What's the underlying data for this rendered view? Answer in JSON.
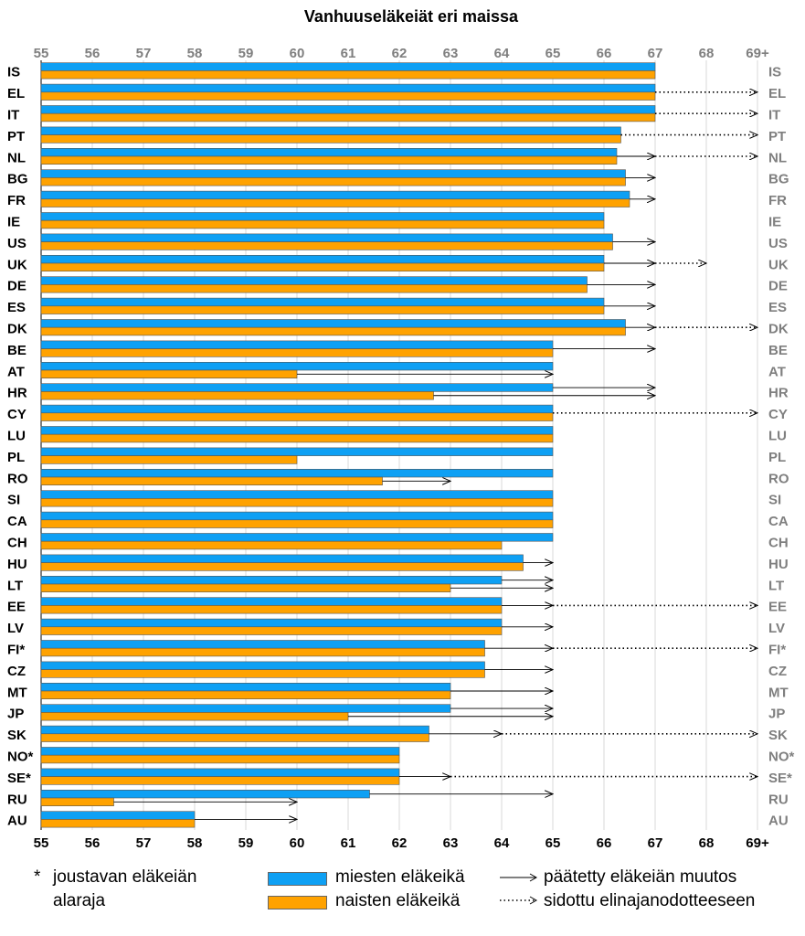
{
  "chart_data": {
    "type": "bar",
    "orientation": "horizontal",
    "title": "Vanhuuseläkeiät eri maissa",
    "x_axis": {
      "min": 55,
      "max": 69,
      "tick_labels": [
        "55",
        "56",
        "57",
        "58",
        "59",
        "60",
        "61",
        "62",
        "63",
        "64",
        "65",
        "66",
        "67",
        "68",
        "69+"
      ],
      "grid": true,
      "label_position": "top and bottom"
    },
    "categories": [
      "IS",
      "EL",
      "IT",
      "PT",
      "NL",
      "BG",
      "FR",
      "IE",
      "US",
      "UK",
      "DE",
      "ES",
      "DK",
      "BE",
      "AT",
      "HR",
      "CY",
      "LU",
      "PL",
      "RO",
      "SI",
      "CA",
      "CH",
      "HU",
      "LT",
      "EE",
      "LV",
      "FI*",
      "CZ",
      "MT",
      "JP",
      "SK",
      "NO*",
      "SE*",
      "RU",
      "AU"
    ],
    "series": [
      {
        "name": "miesten eläkeikä",
        "color": "#0ea0f4",
        "values": [
          67,
          67,
          67,
          66.33,
          66.25,
          66.42,
          66.5,
          66,
          66.17,
          66,
          65.67,
          66,
          66.42,
          65,
          65,
          65,
          65,
          65,
          65,
          65,
          65,
          65,
          65,
          64.42,
          64,
          64,
          64,
          63.67,
          63.67,
          63,
          63,
          62.58,
          62,
          62,
          61.42,
          58
        ]
      },
      {
        "name": "naisten eläkeikä",
        "color": "#ffa200",
        "values": [
          67,
          67,
          67,
          66.33,
          66.25,
          66.42,
          66.5,
          66,
          66.17,
          66,
          65.67,
          66,
          66.42,
          65,
          60,
          62.67,
          65,
          65,
          60,
          61.67,
          65,
          65,
          64,
          64.42,
          63,
          64,
          64,
          63.67,
          63.67,
          63,
          61,
          62.58,
          62,
          62,
          56.42,
          58
        ]
      }
    ],
    "decided_change": [
      {
        "category": "NL",
        "to": 67
      },
      {
        "category": "BG",
        "to": 67
      },
      {
        "category": "FR",
        "to": 67
      },
      {
        "category": "US",
        "to": 67
      },
      {
        "category": "UK",
        "to": 67
      },
      {
        "category": "DE",
        "to": 67
      },
      {
        "category": "ES",
        "to": 67
      },
      {
        "category": "DK",
        "to": 67
      },
      {
        "category": "BE",
        "to": 67
      },
      {
        "category": "AT",
        "series": "naisten eläkeikä",
        "to": 65
      },
      {
        "category": "HR",
        "series": "miesten eläkeikä",
        "to": 67
      },
      {
        "category": "HR",
        "series": "naisten eläkeikä",
        "to": 67
      },
      {
        "category": "RO",
        "series": "naisten eläkeikä",
        "to": 63
      },
      {
        "category": "HU",
        "to": 65
      },
      {
        "category": "LT",
        "series": "miesten eläkeikä",
        "to": 65
      },
      {
        "category": "LT",
        "series": "naisten eläkeikä",
        "to": 65
      },
      {
        "category": "EE",
        "to": 65
      },
      {
        "category": "LV",
        "to": 65
      },
      {
        "category": "FI*",
        "to": 65
      },
      {
        "category": "CZ",
        "to": 65
      },
      {
        "category": "MT",
        "to": 65
      },
      {
        "category": "JP",
        "series": "miesten eläkeikä",
        "to": 65
      },
      {
        "category": "JP",
        "series": "naisten eläkeikä",
        "to": 65
      },
      {
        "category": "SK",
        "to": 64
      },
      {
        "category": "SE*",
        "to": 63
      },
      {
        "category": "RU",
        "series": "miesten eläkeikä",
        "to": 65
      },
      {
        "category": "RU",
        "series": "naisten eläkeikä",
        "to": 60
      },
      {
        "category": "AU",
        "to": 60
      }
    ],
    "life_expectancy_link": [
      {
        "category": "EL",
        "from": 67,
        "to": 69
      },
      {
        "category": "IT",
        "from": 67,
        "to": 69
      },
      {
        "category": "PT",
        "from": 66.33,
        "to": 69
      },
      {
        "category": "NL",
        "from": 67,
        "to": 69
      },
      {
        "category": "UK",
        "from": 67,
        "to": 68
      },
      {
        "category": "DK",
        "from": 67,
        "to": 69
      },
      {
        "category": "CY",
        "from": 65,
        "to": 69
      },
      {
        "category": "EE",
        "from": 65,
        "to": 69
      },
      {
        "category": "FI*",
        "from": 65,
        "to": 69
      },
      {
        "category": "SK",
        "from": 64,
        "to": 69
      },
      {
        "category": "SE*",
        "from": 63,
        "to": 69
      }
    ],
    "legend": {
      "footnote_symbol": "*",
      "footnote_text": "joustavan eläkeiän alaraja",
      "men": "miesten eläkeikä",
      "women": "naisten eläkeikä",
      "decided": "päätetty eläkeiän muutos",
      "linked": "sidottu elinajanodotteeseen"
    }
  }
}
